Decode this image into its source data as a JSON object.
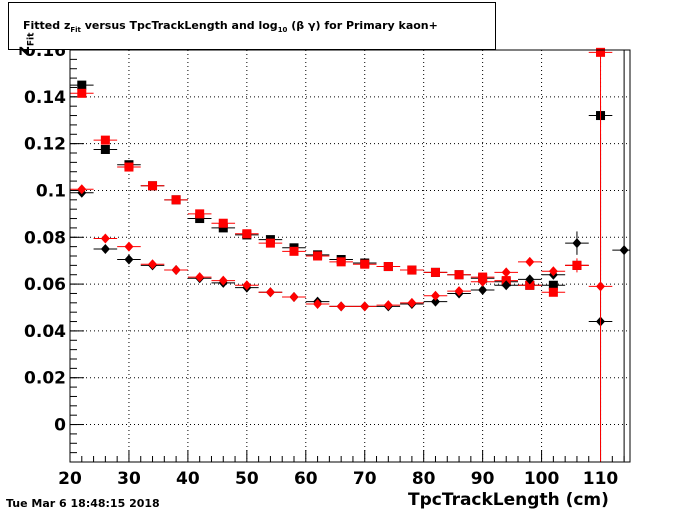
{
  "chart_data": {
    "type": "scatter",
    "title": {
      "pre": "Fitted  z",
      "pre_sub": "Fit",
      "mid": "  versus TpcTrackLength and log",
      "mid_sub": "10",
      "post": " (β γ) for Primary kaon+"
    },
    "xlabel": "TpcTrackLength (cm)",
    "ylabel": {
      "main": "z",
      "sub": "Fit"
    },
    "xlim": [
      20,
      115
    ],
    "ylim": [
      -0.016,
      0.16
    ],
    "x_ticks": [
      "20",
      "30",
      "40",
      "50",
      "60",
      "70",
      "80",
      "90",
      "100",
      "110"
    ],
    "y_ticks": [
      "0",
      "0.02",
      "0.04",
      "0.06",
      "0.08",
      "0.1",
      "0.12",
      "0.14",
      "0.16"
    ],
    "grid": true,
    "series": [
      {
        "marker": "square",
        "color": "#000000",
        "points": [
          [
            22,
            0.145
          ],
          [
            26,
            0.1175
          ],
          [
            30,
            0.111
          ],
          [
            34,
            0.102
          ],
          [
            38,
            0.096
          ],
          [
            42,
            0.088
          ],
          [
            46,
            0.084
          ],
          [
            50,
            0.081
          ],
          [
            54,
            0.079
          ],
          [
            58,
            0.0755
          ],
          [
            62,
            0.0725
          ],
          [
            66,
            0.0705
          ],
          [
            70,
            0.069
          ],
          [
            74,
            0.0675
          ],
          [
            78,
            0.066
          ],
          [
            82,
            0.065
          ],
          [
            86,
            0.064
          ],
          [
            90,
            0.0625
          ],
          [
            94,
            0.061
          ],
          [
            98,
            0.0595
          ],
          [
            102,
            0.0595
          ],
          [
            106,
            0.068
          ],
          [
            110,
            0.132
          ]
        ],
        "xerr": 2,
        "yerr": [
          0.0008,
          0.0008,
          0.0008,
          0.0006,
          0.0006,
          0.0005,
          0.0005,
          0.0005,
          0.0005,
          0.0005,
          0.0005,
          0.0005,
          0.0005,
          0.0005,
          0.0005,
          0.0005,
          0.0005,
          0.0006,
          0.0006,
          0.0008,
          0.001,
          0.0015,
          0.004
        ]
      },
      {
        "marker": "square",
        "color": "#ff0000",
        "points": [
          [
            22,
            0.1415
          ],
          [
            26,
            0.1215
          ],
          [
            30,
            0.11
          ],
          [
            34,
            0.102
          ],
          [
            38,
            0.096
          ],
          [
            42,
            0.09
          ],
          [
            46,
            0.086
          ],
          [
            50,
            0.0815
          ],
          [
            54,
            0.0775
          ],
          [
            58,
            0.074
          ],
          [
            62,
            0.072
          ],
          [
            66,
            0.0695
          ],
          [
            70,
            0.0685
          ],
          [
            74,
            0.0675
          ],
          [
            78,
            0.066
          ],
          [
            82,
            0.065
          ],
          [
            86,
            0.064
          ],
          [
            90,
            0.063
          ],
          [
            94,
            0.0615
          ],
          [
            98,
            0.0595
          ],
          [
            102,
            0.0565
          ],
          [
            106,
            0.068
          ],
          [
            110,
            0.159
          ]
        ],
        "xerr": 2,
        "yerr": [
          0.0008,
          0.0008,
          0.0008,
          0.0006,
          0.0006,
          0.0005,
          0.0005,
          0.0005,
          0.0005,
          0.0005,
          0.0005,
          0.0005,
          0.0005,
          0.0005,
          0.0005,
          0.0005,
          0.0005,
          0.0006,
          0.0006,
          0.0008,
          0.001,
          0.0015,
          0.09
        ]
      },
      {
        "marker": "diamond",
        "color": "#000000",
        "points": [
          [
            22,
            0.099
          ],
          [
            26,
            0.075
          ],
          [
            30,
            0.0705
          ],
          [
            34,
            0.068
          ],
          [
            38,
            0.066
          ],
          [
            42,
            0.0625
          ],
          [
            46,
            0.0605
          ],
          [
            50,
            0.0585
          ],
          [
            54,
            0.0565
          ],
          [
            58,
            0.0545
          ],
          [
            62,
            0.0525
          ],
          [
            66,
            0.0505
          ],
          [
            70,
            0.0505
          ],
          [
            74,
            0.0505
          ],
          [
            78,
            0.0515
          ],
          [
            82,
            0.0525
          ],
          [
            86,
            0.056
          ],
          [
            90,
            0.0575
          ],
          [
            94,
            0.0595
          ],
          [
            98,
            0.062
          ],
          [
            102,
            0.064
          ],
          [
            106,
            0.0775
          ],
          [
            110,
            0.044
          ],
          [
            114,
            0.0745
          ]
        ],
        "xerr": 2,
        "yerr": [
          0.0008,
          0.0008,
          0.0006,
          0.0005,
          0.0005,
          0.0005,
          0.0005,
          0.0005,
          0.0005,
          0.0005,
          0.0005,
          0.0005,
          0.0005,
          0.0005,
          0.0005,
          0.0005,
          0.0006,
          0.0006,
          0.0008,
          0.001,
          0.0015,
          0.005,
          0.08,
          0.09
        ]
      },
      {
        "marker": "diamond",
        "color": "#ff0000",
        "points": [
          [
            22,
            0.1005
          ],
          [
            26,
            0.0795
          ],
          [
            30,
            0.076
          ],
          [
            34,
            0.0685
          ],
          [
            38,
            0.066
          ],
          [
            42,
            0.063
          ],
          [
            46,
            0.0615
          ],
          [
            50,
            0.0595
          ],
          [
            54,
            0.0565
          ],
          [
            58,
            0.0545
          ],
          [
            62,
            0.0515
          ],
          [
            66,
            0.0505
          ],
          [
            70,
            0.0505
          ],
          [
            74,
            0.051
          ],
          [
            78,
            0.052
          ],
          [
            82,
            0.055
          ],
          [
            86,
            0.057
          ],
          [
            90,
            0.061
          ],
          [
            94,
            0.065
          ],
          [
            98,
            0.0695
          ],
          [
            102,
            0.0655
          ],
          [
            106,
            0.068
          ],
          [
            110,
            0.059
          ]
        ],
        "xerr": 2,
        "yerr": [
          0.0008,
          0.0008,
          0.0006,
          0.0005,
          0.0005,
          0.0005,
          0.0005,
          0.0005,
          0.0005,
          0.0005,
          0.0005,
          0.0005,
          0.0005,
          0.0005,
          0.0005,
          0.0005,
          0.0006,
          0.0006,
          0.0008,
          0.001,
          0.0015,
          0.003,
          0.08
        ]
      }
    ]
  },
  "footer": {
    "timestamp": "Tue Mar  6 18:48:15 2018"
  }
}
